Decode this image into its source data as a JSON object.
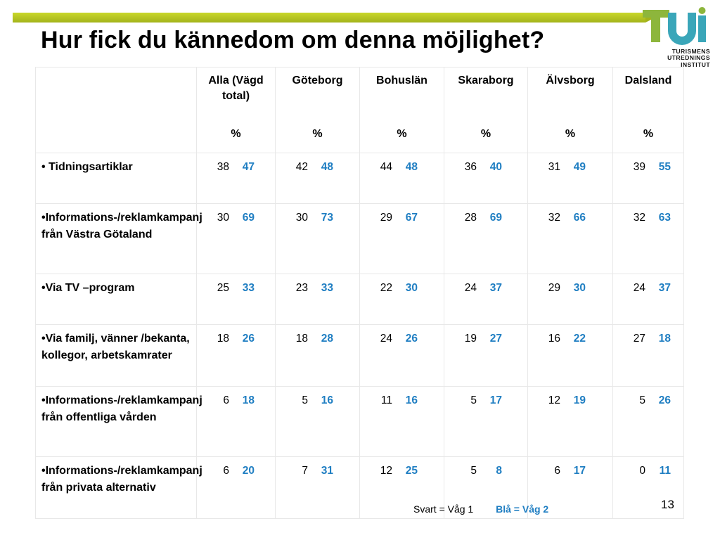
{
  "title": "Hur fick du kännedom om denna möjlighet?",
  "logo": {
    "letters": "TUI",
    "lines": [
      "TURISMENS",
      "UTREDNINGS",
      "INSTITUT"
    ],
    "colors": {
      "green": "#8db63c",
      "teal": "#3aa6b9"
    }
  },
  "table": {
    "columns": [
      {
        "name": "Alla (Vägd total)",
        "unit": "%"
      },
      {
        "name": "Göteborg",
        "unit": "%"
      },
      {
        "name": "Bohuslän",
        "unit": "%"
      },
      {
        "name": "Skaraborg",
        "unit": "%"
      },
      {
        "name": "Älvsborg",
        "unit": "%"
      },
      {
        "name": "Dalsland",
        "unit": "%"
      }
    ],
    "rows": [
      {
        "label": "• Tidningsartiklar",
        "values": [
          [
            "38",
            "47"
          ],
          [
            "42",
            "48"
          ],
          [
            "44",
            "48"
          ],
          [
            "36",
            "40"
          ],
          [
            "31",
            "49"
          ],
          [
            "39",
            "55"
          ]
        ]
      },
      {
        "label": "•Informations-/reklamkampanj från Västra Götaland",
        "values": [
          [
            "30",
            "69"
          ],
          [
            "30",
            "73"
          ],
          [
            "29",
            "67"
          ],
          [
            "28",
            "69"
          ],
          [
            "32",
            "66"
          ],
          [
            "32",
            "63"
          ]
        ]
      },
      {
        "label": "•Via TV –program",
        "values": [
          [
            "25",
            "33"
          ],
          [
            "23",
            "33"
          ],
          [
            "22",
            "30"
          ],
          [
            "24",
            "37"
          ],
          [
            "29",
            "30"
          ],
          [
            "24",
            "37"
          ]
        ]
      },
      {
        "label": "•Via familj, vänner /bekanta, kollegor, arbetskamrater",
        "values": [
          [
            "18",
            "26"
          ],
          [
            "18",
            "28"
          ],
          [
            "24",
            "26"
          ],
          [
            "19",
            "27"
          ],
          [
            "16",
            "22"
          ],
          [
            "27",
            "18"
          ]
        ]
      },
      {
        "label": "•Informations-/reklamkampanj från offentliga vården",
        "values": [
          [
            "6",
            "18"
          ],
          [
            "5",
            "16"
          ],
          [
            "11",
            "16"
          ],
          [
            "5",
            "17"
          ],
          [
            "12",
            "19"
          ],
          [
            "5",
            "26"
          ]
        ]
      },
      {
        "label": "•Informations-/reklamkampanj från privata alternativ",
        "values": [
          [
            "6",
            "20"
          ],
          [
            "7",
            "31"
          ],
          [
            "12",
            "25"
          ],
          [
            "5",
            "8"
          ],
          [
            "6",
            "17"
          ],
          [
            "0",
            "11"
          ]
        ]
      }
    ]
  },
  "legend": {
    "wave1": "Svart = Våg 1",
    "wave2": "Blå = Våg 2",
    "wave2_color": "#1f7ec2"
  },
  "page_number": "13"
}
